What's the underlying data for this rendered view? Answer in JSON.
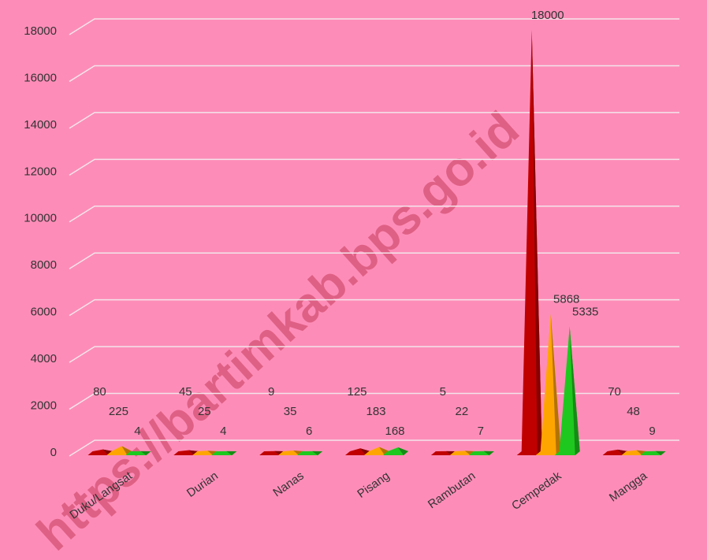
{
  "watermark": "https://bartimkab.bps.go.id",
  "chart_data": {
    "type": "cone",
    "categories": [
      "Duku/Langsat",
      "Durian",
      "Nanas",
      "Pisang",
      "Rambutan",
      "Cempedak",
      "Mangga"
    ],
    "series": [
      {
        "color": "#c00000",
        "values": [
          80,
          45,
          9,
          125,
          5,
          18000,
          70
        ]
      },
      {
        "color": "#ffa500",
        "values": [
          225,
          25,
          35,
          183,
          22,
          5868,
          48
        ]
      },
      {
        "color": "#1ec81e",
        "values": [
          4,
          4,
          6,
          168,
          7,
          5335,
          9
        ]
      }
    ],
    "ylim": [
      0,
      18000
    ],
    "yticks": [
      0,
      2000,
      4000,
      6000,
      8000,
      10000,
      12000,
      14000,
      16000,
      18000
    ],
    "grid": true
  }
}
